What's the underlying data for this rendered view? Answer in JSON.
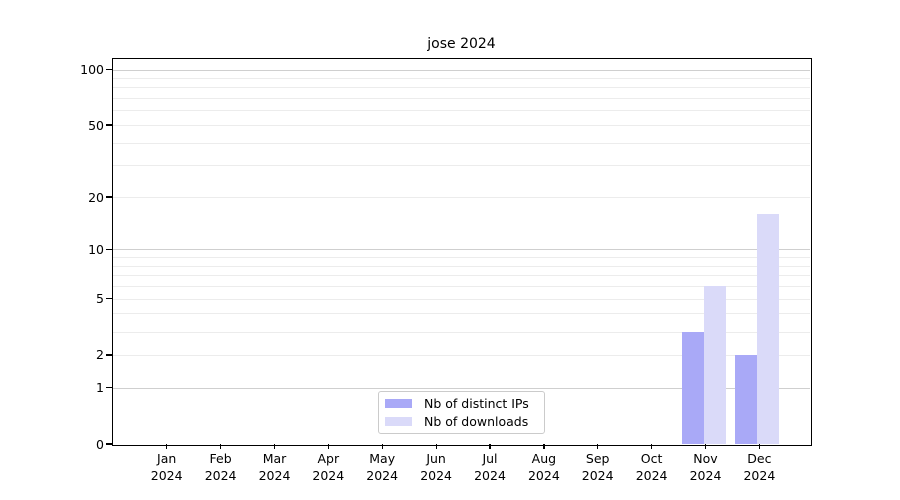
{
  "chart_data": {
    "type": "bar",
    "title": "jose 2024",
    "scale": "log1p",
    "ylim": [
      0,
      114
    ],
    "grid": true,
    "legend_position": "bottom-center",
    "categories": [
      "Jan",
      "Feb",
      "Mar",
      "Apr",
      "May",
      "Jun",
      "Jul",
      "Aug",
      "Sep",
      "Oct",
      "Nov",
      "Dec"
    ],
    "category_year": "2024",
    "y_ticks": [
      0,
      1,
      2,
      5,
      10,
      20,
      50,
      100
    ],
    "major_gridlines": [
      1,
      10,
      100
    ],
    "minor_gridlines": [
      2,
      3,
      4,
      5,
      6,
      7,
      8,
      9,
      20,
      30,
      40,
      50,
      60,
      70,
      80,
      90
    ],
    "series": [
      {
        "name": "Nb of distinct IPs",
        "color": "#a9a9f7",
        "values": [
          0,
          0,
          0,
          0,
          0,
          0,
          0,
          0,
          0,
          0,
          3,
          2
        ]
      },
      {
        "name": "Nb of downloads",
        "color": "#dadaf9",
        "values": [
          0,
          0,
          0,
          0,
          0,
          0,
          0,
          0,
          0,
          0,
          6,
          16
        ]
      }
    ],
    "colors": {
      "spine": "#000000",
      "major_grid": "#cfcfcf",
      "minor_grid": "#ececec",
      "text": "#000000",
      "background": "#ffffff"
    }
  }
}
